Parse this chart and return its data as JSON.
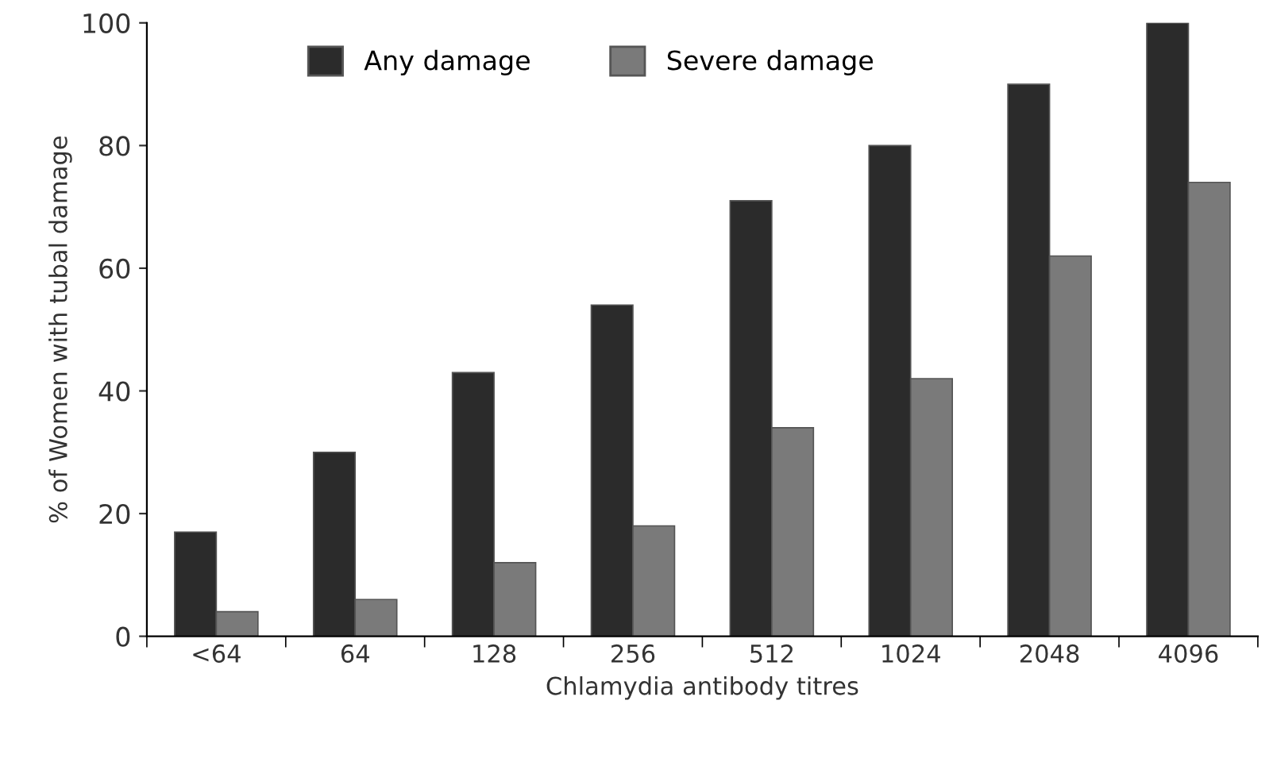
{
  "chart_data": {
    "type": "bar",
    "xlabel": "Chlamydia antibody titres",
    "ylabel": "% of Women with tubal damage",
    "categories": [
      "<64",
      "64",
      "128",
      "256",
      "512",
      "1024",
      "2048",
      "4096"
    ],
    "series": [
      {
        "name": "Any damage",
        "color": "#2b2b2b",
        "values": [
          17,
          30,
          43,
          54,
          71,
          80,
          90,
          100
        ]
      },
      {
        "name": "Severe damage",
        "color": "#7a7a7a",
        "values": [
          4,
          6,
          12,
          18,
          34,
          42,
          62,
          74
        ]
      }
    ],
    "ylim": [
      0,
      100
    ],
    "yticks": [
      0,
      20,
      40,
      60,
      80,
      100
    ],
    "grid": false,
    "legend": "top"
  }
}
